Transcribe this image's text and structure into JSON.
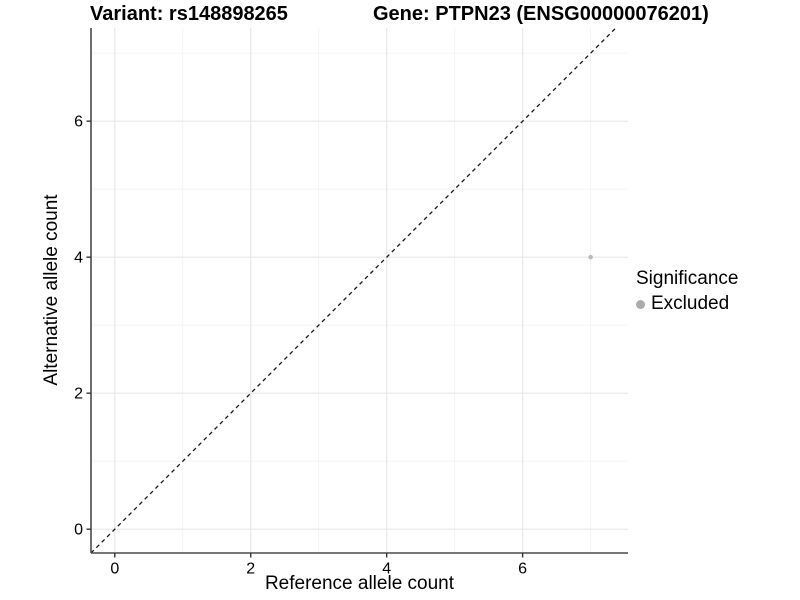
{
  "figure": {
    "title_left": "Variant: rs148898265",
    "title_right": "Gene: PTPN23 (ENSG00000076201)"
  },
  "chart_data": {
    "type": "scatter",
    "title": "Variant: rs148898265",
    "subtitle": "Gene: PTPN23 (ENSG00000076201)",
    "xlabel": "Reference allele count",
    "ylabel": "Alternative allele count",
    "xlim": [
      -0.35,
      7.55
    ],
    "ylim": [
      -0.35,
      7.37
    ],
    "xticks": [
      0,
      2,
      4,
      6
    ],
    "yticks": [
      0,
      2,
      4,
      6
    ],
    "xticks_minor": [
      1,
      3,
      5,
      7
    ],
    "yticks_minor": [
      1,
      3,
      5,
      7
    ],
    "grid": true,
    "series": [
      {
        "name": "Excluded",
        "points": [
          {
            "x": 7,
            "y": 4
          }
        ],
        "color": "#bcbcbc",
        "marker_radius": 2.3
      }
    ],
    "reference_line": {
      "kind": "identity",
      "slope": 1,
      "intercept": 0,
      "style": "dashed",
      "color": "#1a1a1a"
    },
    "legend": {
      "title": "Significance",
      "position": "right",
      "items": [
        {
          "label": "Excluded",
          "color": "#ababab"
        }
      ]
    },
    "colors": {
      "background": "#ffffff",
      "grid_major": "#e7e7e7",
      "grid_minor": "#f2f2f2",
      "axis_line": "#4a4a4a",
      "tick": "#333333",
      "text": "#000000"
    }
  }
}
